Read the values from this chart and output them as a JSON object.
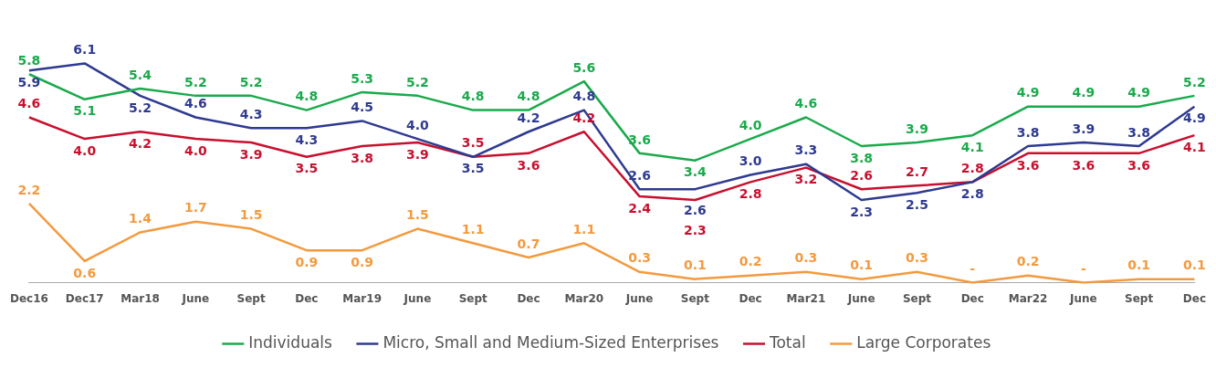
{
  "chart_data": {
    "type": "line",
    "categories": [
      "Dec16",
      "Dec17",
      "Mar18",
      "June",
      "Sept",
      "Dec",
      "Mar19",
      "June",
      "Sept",
      "Dec",
      "Mar20",
      "June",
      "Sept",
      "Dec",
      "Mar21",
      "June",
      "Sept",
      "Dec",
      "Mar22",
      "June",
      "Sept",
      "Dec"
    ],
    "series": [
      {
        "name": "Individuals",
        "color": "#1aaa4b",
        "values": [
          5.8,
          5.1,
          5.4,
          5.2,
          5.2,
          4.8,
          5.3,
          5.2,
          4.8,
          4.8,
          5.6,
          3.6,
          3.4,
          4.0,
          4.6,
          3.8,
          3.9,
          4.1,
          4.9,
          4.9,
          4.9,
          5.2
        ],
        "value_labels": [
          "5.8",
          "5.1",
          "5.4",
          "5.2",
          "5.2",
          "4.8",
          "5.3",
          "5.2",
          "4.8",
          "4.8",
          "5.6",
          "3.6",
          "3.4",
          "4.0",
          "4.6",
          "3.8",
          "3.9",
          "4.1",
          "4.9",
          "4.9",
          "4.9",
          "5.2"
        ]
      },
      {
        "name": "Micro, Small and Medium-Sized Enterprises",
        "color": "#2e3a8f",
        "values": [
          5.9,
          6.1,
          5.2,
          4.6,
          4.3,
          4.3,
          4.5,
          4.0,
          3.5,
          4.2,
          4.8,
          2.6,
          2.6,
          3.0,
          3.3,
          2.3,
          2.5,
          2.8,
          3.8,
          3.9,
          3.8,
          4.9
        ],
        "value_labels": [
          "5.9",
          "6.1",
          "5.2",
          "4.6",
          "4.3",
          "4.3",
          "4.5",
          "4.0",
          "3.5",
          "4.2",
          "4.8",
          "2.6",
          "2.6",
          "3.0",
          "3.3",
          "2.3",
          "2.5",
          "2.8",
          "3.8",
          "3.9",
          "3.8",
          "4.9"
        ]
      },
      {
        "name": "Total",
        "color": "#c8102e",
        "values": [
          4.6,
          4.0,
          4.2,
          4.0,
          3.9,
          3.5,
          3.8,
          3.9,
          3.5,
          3.6,
          4.2,
          2.4,
          2.3,
          2.8,
          3.2,
          2.6,
          2.7,
          2.8,
          3.6,
          3.6,
          3.6,
          4.1
        ],
        "value_labels": [
          "4.6",
          "4.0",
          "4.2",
          "4.0",
          "3.9",
          "3.5",
          "3.8",
          "3.9",
          "3.5",
          "3.6",
          "4.2",
          "2.4",
          "2.3",
          "2.8",
          "3.2",
          "2.6",
          "2.7",
          "2.8",
          "3.6",
          "3.6",
          "3.6",
          "4.1"
        ]
      },
      {
        "name": "Large Corporates",
        "color": "#f39a3e",
        "values": [
          2.2,
          0.6,
          1.4,
          1.7,
          1.5,
          0.9,
          0.9,
          1.5,
          1.1,
          0.7,
          1.1,
          0.3,
          0.1,
          0.2,
          0.3,
          0.1,
          0.3,
          0,
          0.2,
          0,
          0.1,
          0.1
        ],
        "value_labels": [
          "2.2",
          "0.6",
          "1.4",
          "1.7",
          "1.5",
          "0.9",
          "0.9",
          "1.5",
          "1.1",
          "0.7",
          "1.1",
          "0.3",
          "0.1",
          "0.2",
          "0.3",
          "0.1",
          "0.3",
          "-",
          "0.2",
          "-",
          "0.1",
          "0.1"
        ]
      }
    ],
    "legend": "bottom",
    "marker": "none",
    "line_style": "solid"
  }
}
